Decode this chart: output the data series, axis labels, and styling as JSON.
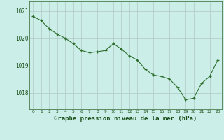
{
  "x": [
    0,
    1,
    2,
    3,
    4,
    5,
    6,
    7,
    8,
    9,
    10,
    11,
    12,
    13,
    14,
    15,
    16,
    17,
    18,
    19,
    20,
    21,
    22,
    23
  ],
  "y": [
    1020.8,
    1020.65,
    1020.35,
    1020.15,
    1020.0,
    1019.8,
    1019.55,
    1019.47,
    1019.5,
    1019.55,
    1019.8,
    1019.6,
    1019.35,
    1019.2,
    1018.85,
    1018.65,
    1018.6,
    1018.5,
    1018.2,
    1017.75,
    1017.8,
    1018.35,
    1018.6,
    1019.2
  ],
  "line_color": "#2d6e2d",
  "marker_color": "#2d6e2d",
  "bg_color": "#cceee8",
  "grid_color": "#b0c8c4",
  "xlabel": "Graphe pression niveau de la mer (hPa)",
  "xlabel_color": "#1a4f1a",
  "tick_color": "#1a4f1a",
  "ylim_min": 1017.4,
  "ylim_max": 1021.35,
  "yticks": [
    1018,
    1019,
    1020,
    1021
  ],
  "xticks": [
    0,
    1,
    2,
    3,
    4,
    5,
    6,
    7,
    8,
    9,
    10,
    11,
    12,
    13,
    14,
    15,
    16,
    17,
    18,
    19,
    20,
    21,
    22,
    23
  ]
}
